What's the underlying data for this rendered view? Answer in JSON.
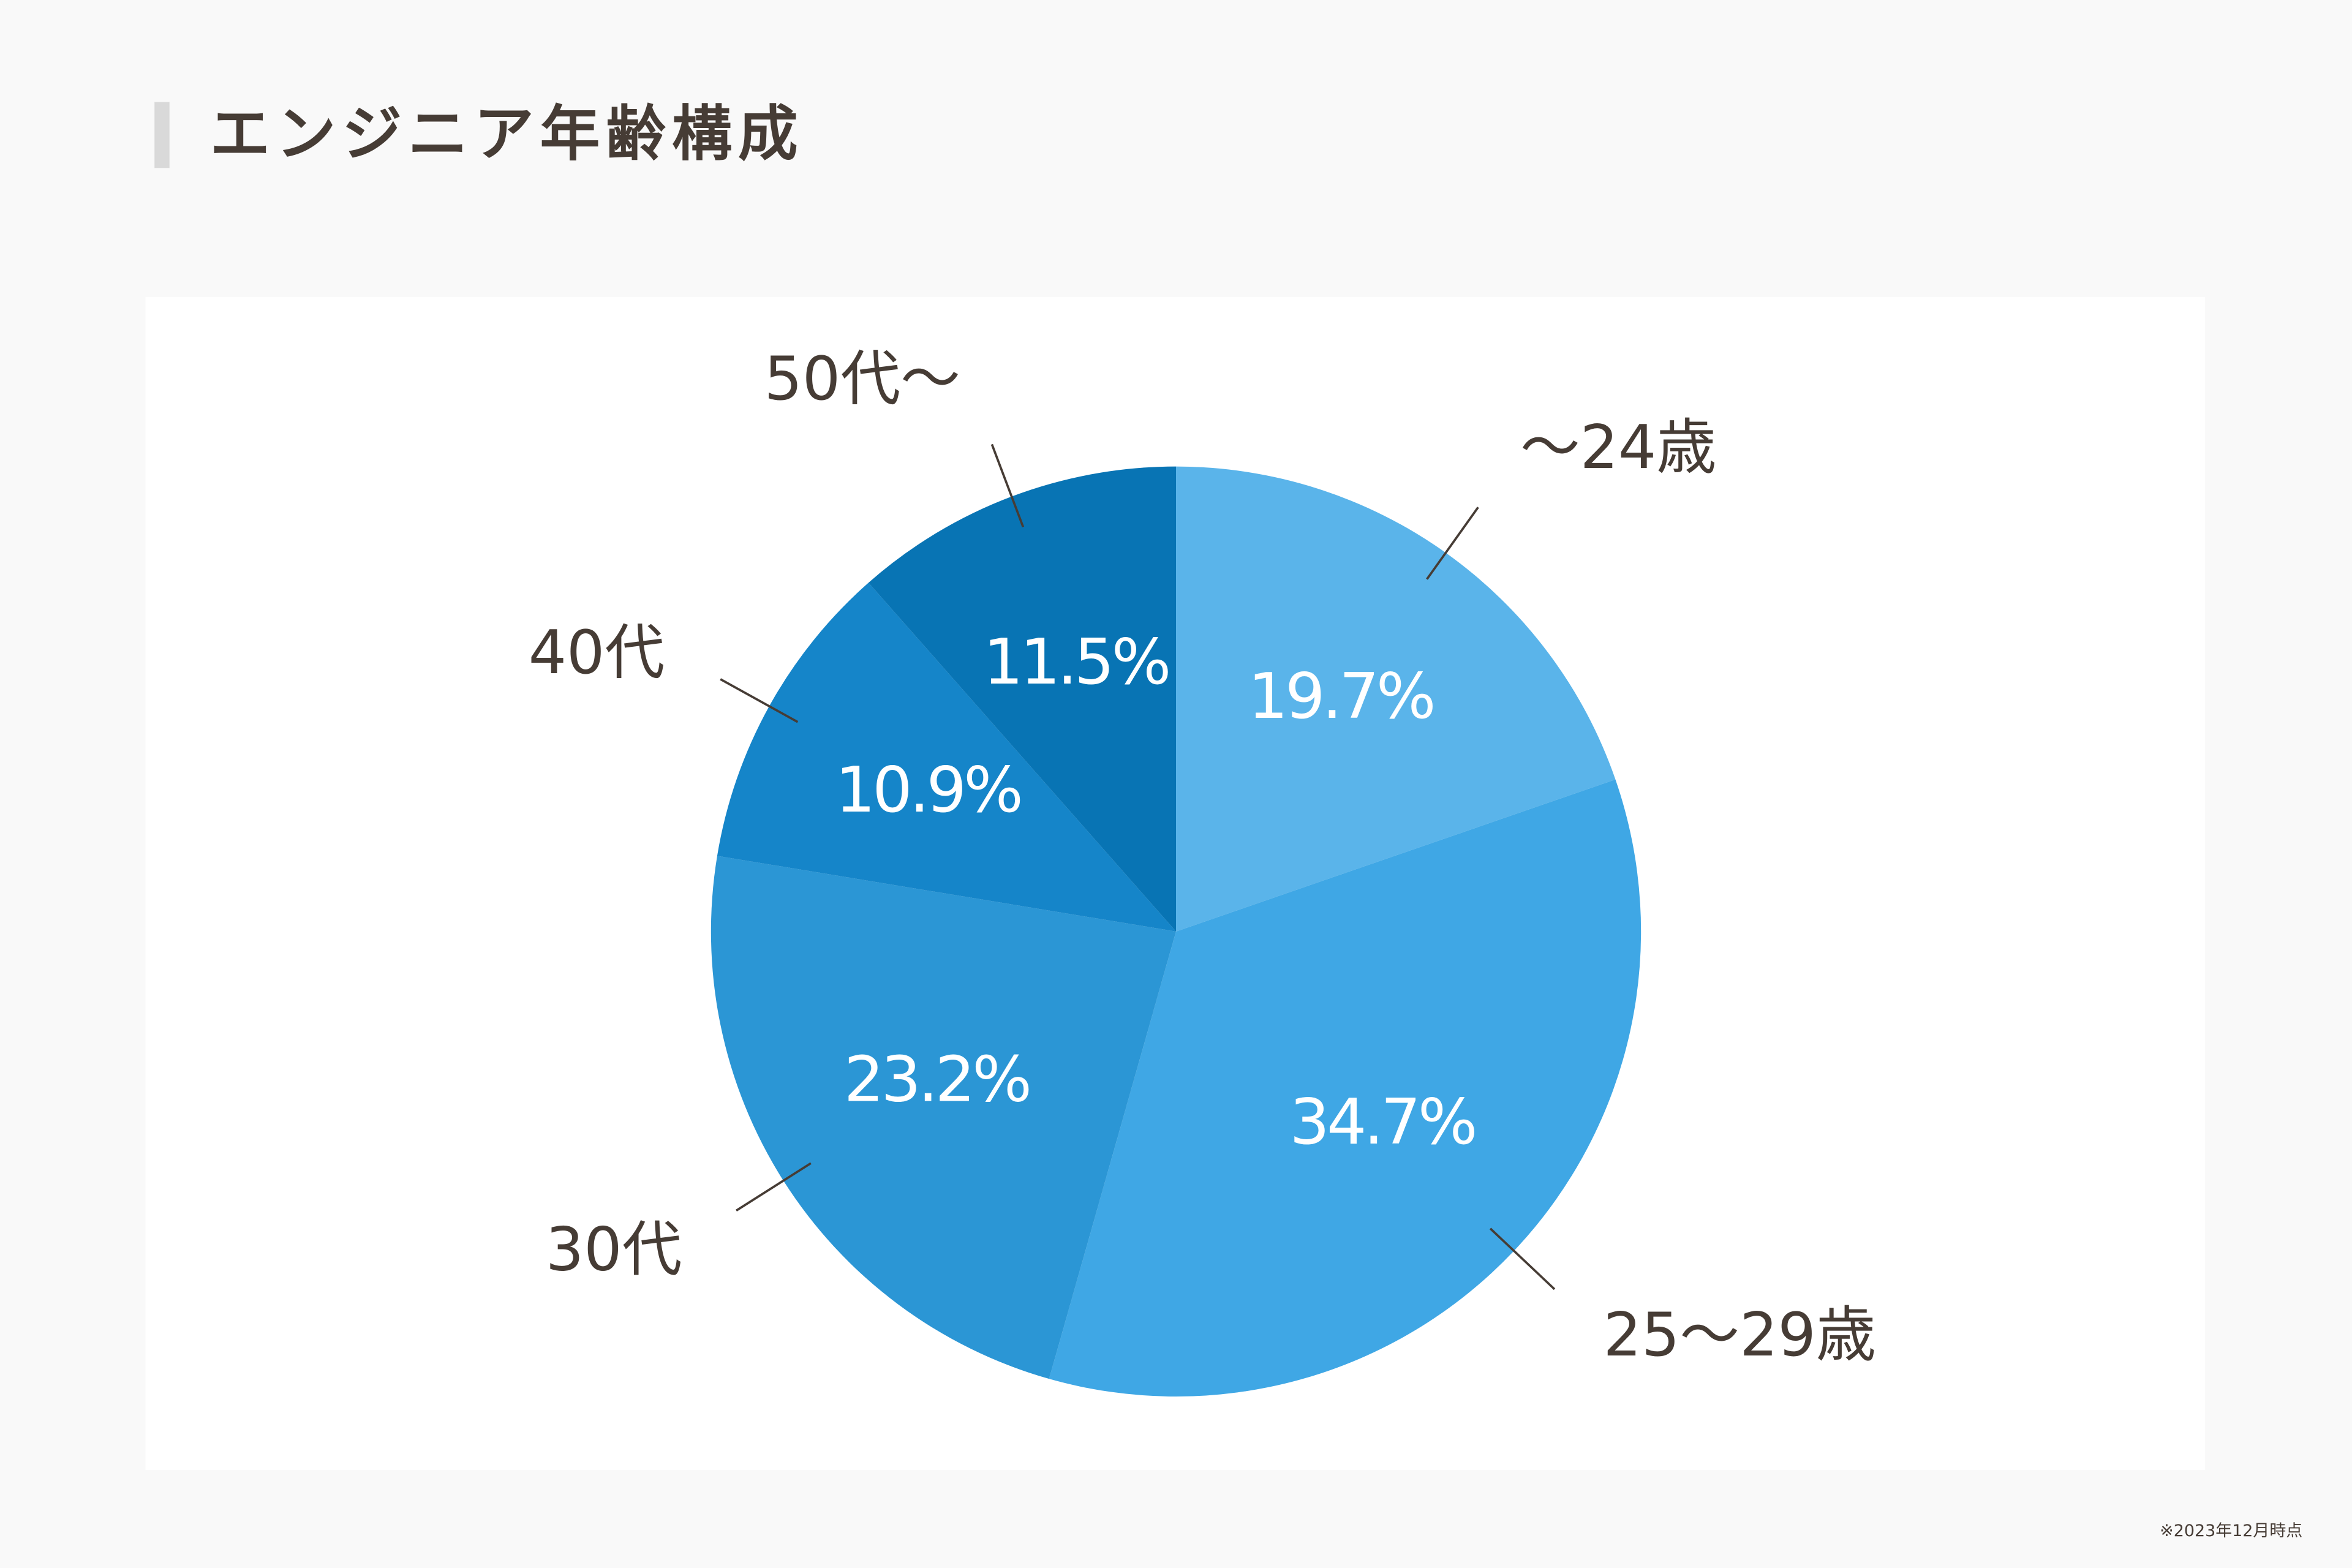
{
  "chart_data": {
    "type": "pie",
    "title": "エンジニア年齢構成",
    "note": "※2023年12月時点",
    "categories": [
      "〜24歳",
      "25〜29歳",
      "30代",
      "40代",
      "50代〜"
    ],
    "values": [
      19.7,
      34.7,
      23.2,
      10.9,
      11.5
    ],
    "value_labels": [
      "19.7%",
      "34.7%",
      "23.2%",
      "10.9%",
      "11.5%"
    ],
    "colors": [
      "#5ab4ea",
      "#3fa7e5",
      "#2b96d5",
      "#1585c9",
      "#0874b4"
    ]
  }
}
